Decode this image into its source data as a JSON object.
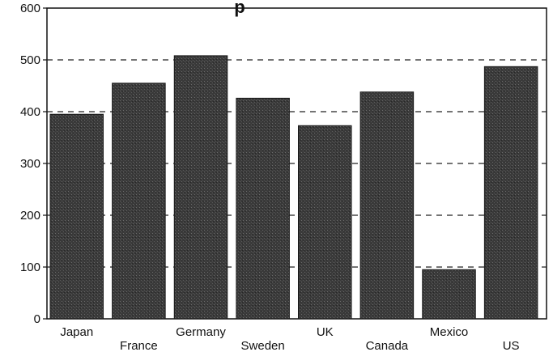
{
  "chart_data": {
    "type": "bar",
    "title_fragment": "p",
    "categories": [
      "Japan",
      "France",
      "Germany",
      "Sweden",
      "UK",
      "Canada",
      "Mexico",
      "US"
    ],
    "values": [
      395,
      455,
      508,
      426,
      373,
      438,
      95,
      487
    ],
    "xlabel": "",
    "ylabel": "",
    "ylim": [
      0,
      600
    ],
    "yticks": [
      "0",
      "100",
      "200",
      "300",
      "400",
      "500",
      "600"
    ],
    "grid": "horizontal dashed",
    "bar_color": "#3a3a3a",
    "label_stagger": true
  }
}
